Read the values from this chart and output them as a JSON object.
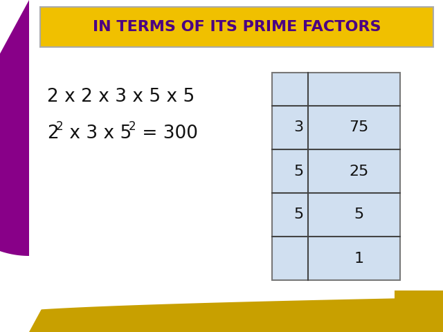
{
  "title": "IN TERMS OF ITS PRIME FACTORS",
  "title_bg_color": "#F0C000",
  "title_text_color": "#4B0082",
  "bg_color": "#FFFFFF",
  "left_border_color": "#880088",
  "bottom_accent_color": "#C8A000",
  "line1": "2 x 2 x 3 x 5 x 5",
  "table_bg_color": "#D0DFF0",
  "table_border_color": "#777777",
  "table_rows": [
    {
      "divisor": "3",
      "quotient": "75"
    },
    {
      "divisor": "5",
      "quotient": "25"
    },
    {
      "divisor": "5",
      "quotient": "5"
    },
    {
      "divisor": "",
      "quotient": "1"
    }
  ],
  "text_color": "#111111"
}
